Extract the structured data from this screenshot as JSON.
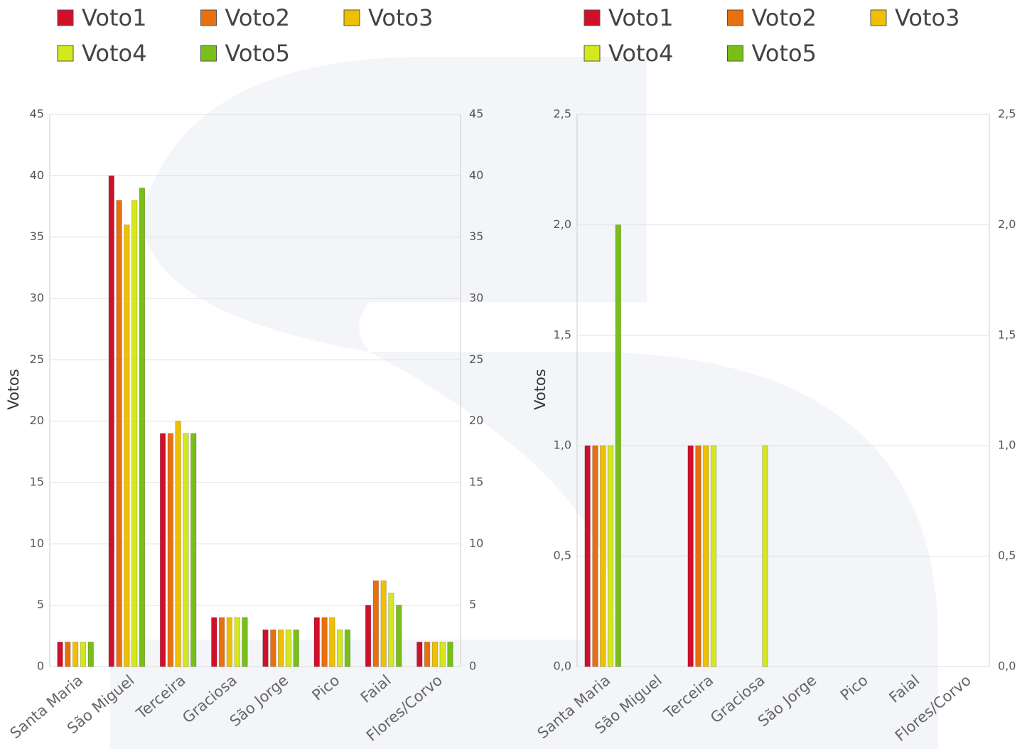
{
  "chart_data": [
    {
      "type": "bar",
      "y_label": "Votos",
      "categories": [
        "Santa Maria",
        "São Miguel",
        "Terceira",
        "Graciosa",
        "São Jorge",
        "Pico",
        "Faial",
        "Flores/Corvo"
      ],
      "series": [
        {
          "name": "Voto1",
          "color": "#d0102a",
          "values": [
            2,
            40,
            19,
            4,
            3,
            4,
            5,
            2
          ]
        },
        {
          "name": "Voto2",
          "color": "#e8700e",
          "values": [
            2,
            38,
            19,
            4,
            3,
            4,
            7,
            2
          ]
        },
        {
          "name": "Voto3",
          "color": "#f0c000",
          "values": [
            2,
            36,
            20,
            4,
            3,
            4,
            7,
            2
          ]
        },
        {
          "name": "Voto4",
          "color": "#d4e81c",
          "values": [
            2,
            38,
            19,
            4,
            3,
            3,
            6,
            2
          ]
        },
        {
          "name": "Voto5",
          "color": "#78bf18",
          "values": [
            2,
            39,
            19,
            4,
            3,
            3,
            5,
            2
          ]
        }
      ],
      "ylim": [
        0,
        45
      ],
      "yticks": [
        0,
        5,
        10,
        15,
        20,
        25,
        30,
        35,
        40,
        45
      ],
      "grid": true
    },
    {
      "type": "bar",
      "y_label": "Votos",
      "categories": [
        "Santa Maria",
        "São Miguel",
        "Terceira",
        "Graciosa",
        "São Jorge",
        "Pico",
        "Faial",
        "Flores/Corvo"
      ],
      "series": [
        {
          "name": "Voto1",
          "color": "#d0102a",
          "values": [
            1,
            0,
            1,
            0,
            0,
            0,
            0,
            0
          ]
        },
        {
          "name": "Voto2",
          "color": "#e8700e",
          "values": [
            1,
            0,
            1,
            0,
            0,
            0,
            0,
            0
          ]
        },
        {
          "name": "Voto3",
          "color": "#f0c000",
          "values": [
            1,
            0,
            1,
            0,
            0,
            0,
            0,
            0
          ]
        },
        {
          "name": "Voto4",
          "color": "#d4e81c",
          "values": [
            1,
            0,
            1,
            1,
            0,
            0,
            0,
            0
          ]
        },
        {
          "name": "Voto5",
          "color": "#78bf18",
          "values": [
            2,
            0,
            0,
            0,
            0,
            0,
            0,
            0
          ]
        }
      ],
      "ylim": [
        0,
        2.5
      ],
      "yticks": [
        {
          "value": 0,
          "label": "0,0"
        },
        {
          "value": 0.5,
          "label": "0,5"
        },
        {
          "value": 1,
          "label": "1,0"
        },
        {
          "value": 1.5,
          "label": "1,5"
        },
        {
          "value": 2,
          "label": "2,0"
        },
        {
          "value": 2.5,
          "label": "2,5"
        }
      ],
      "grid": true
    }
  ]
}
